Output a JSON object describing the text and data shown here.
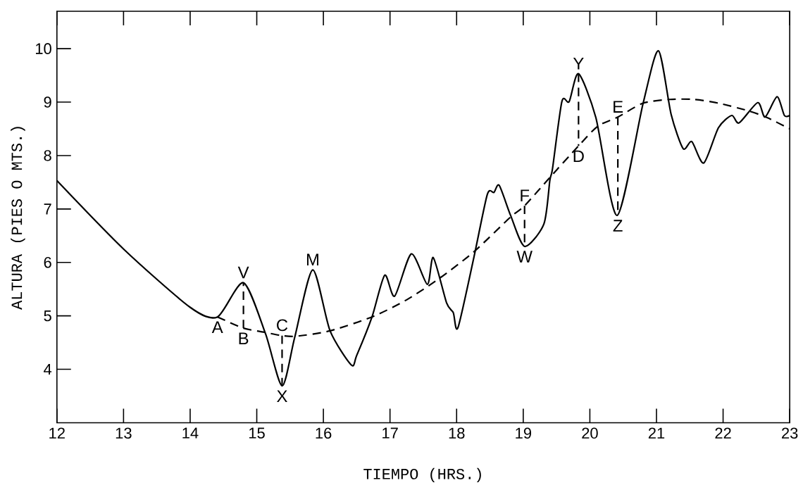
{
  "chart_data": {
    "type": "line",
    "xlabel": "TIEMPO (HRS.)",
    "ylabel": "ALTURA (PIES O MTS.)",
    "xlim": [
      12,
      23
    ],
    "ylim": [
      3,
      10.7
    ],
    "xticks": [
      12,
      13,
      14,
      15,
      16,
      17,
      18,
      19,
      20,
      21,
      22,
      23
    ],
    "yticks": [
      4,
      5,
      6,
      7,
      8,
      9,
      10
    ],
    "marker": "none",
    "grid": false,
    "series": [
      {
        "color": "#000000",
        "line_style": "solid",
        "x": [
          12,
          13.0,
          14.0,
          14.41,
          14.8,
          15.13,
          15.38,
          15.57,
          15.84,
          16.1,
          16.42,
          16.5,
          16.73,
          16.92,
          17.07,
          17.32,
          17.56,
          17.65,
          17.85,
          17.95,
          18.02,
          18.26,
          18.46,
          18.56,
          18.64,
          18.81,
          19.02,
          19.31,
          19.4,
          19.44,
          19.58,
          19.69,
          19.83,
          20.09,
          20.41,
          20.8,
          21.03,
          21.22,
          21.4,
          21.53,
          21.71,
          21.93,
          22.13,
          22.24,
          22.52,
          22.63,
          22.81,
          22.92,
          23.0
        ],
        "values": [
          7.53,
          6.25,
          5.16,
          4.98,
          5.62,
          4.67,
          3.69,
          4.6,
          5.86,
          4.72,
          4.08,
          4.26,
          4.98,
          5.76,
          5.37,
          6.16,
          5.59,
          6.09,
          5.24,
          5.06,
          4.78,
          6.1,
          7.27,
          7.31,
          7.44,
          6.88,
          6.3,
          6.72,
          7.54,
          7.76,
          9.01,
          9.01,
          9.53,
          8.71,
          6.88,
          8.98,
          9.96,
          8.77,
          8.13,
          8.26,
          7.86,
          8.52,
          8.75,
          8.61,
          8.99,
          8.72,
          9.1,
          8.75,
          8.75
        ]
      },
      {
        "color": "#000000",
        "line_style": "dashed",
        "x": [
          14.41,
          14.8,
          15.13,
          15.38,
          15.6,
          16.1,
          16.73,
          17.25,
          17.75,
          18.26,
          18.81,
          19.02,
          19.4,
          19.83,
          20.12,
          20.42,
          20.8,
          21.2,
          21.56,
          21.93,
          22.37,
          22.66,
          23.0
        ],
        "values": [
          4.98,
          4.77,
          4.69,
          4.63,
          4.62,
          4.72,
          4.98,
          5.3,
          5.71,
          6.2,
          6.85,
          7.06,
          7.59,
          8.18,
          8.55,
          8.72,
          8.98,
          9.05,
          9.05,
          8.98,
          8.84,
          8.71,
          8.5
        ]
      },
      {
        "color": "#000000",
        "line_style": "dashed",
        "x": [
          14.8,
          14.8
        ],
        "values": [
          4.77,
          5.62
        ]
      },
      {
        "color": "#000000",
        "line_style": "dashed",
        "x": [
          15.38,
          15.38
        ],
        "values": [
          4.63,
          3.69
        ]
      },
      {
        "color": "#000000",
        "line_style": "dashed",
        "x": [
          19.02,
          19.02
        ],
        "values": [
          7.06,
          6.3
        ]
      },
      {
        "color": "#000000",
        "line_style": "dashed",
        "x": [
          19.83,
          19.83
        ],
        "values": [
          9.53,
          8.18
        ]
      },
      {
        "color": "#000000",
        "line_style": "dashed",
        "x": [
          20.42,
          20.42
        ],
        "values": [
          8.72,
          6.88
        ]
      }
    ],
    "annotations": [
      {
        "text": "A",
        "x": 14.41,
        "y": 4.98
      },
      {
        "text": "V",
        "x": 14.8,
        "y": 5.62
      },
      {
        "text": "B",
        "x": 14.8,
        "y": 4.77
      },
      {
        "text": "C",
        "x": 15.38,
        "y": 4.63
      },
      {
        "text": "X",
        "x": 15.38,
        "y": 3.69
      },
      {
        "text": "M",
        "x": 15.84,
        "y": 5.86
      },
      {
        "text": "F",
        "x": 19.02,
        "y": 7.06
      },
      {
        "text": "W",
        "x": 19.02,
        "y": 6.3
      },
      {
        "text": "Y",
        "x": 19.83,
        "y": 9.53
      },
      {
        "text": "D",
        "x": 19.83,
        "y": 8.18
      },
      {
        "text": "E",
        "x": 20.42,
        "y": 8.72
      },
      {
        "text": "Z",
        "x": 20.42,
        "y": 6.88
      }
    ]
  }
}
